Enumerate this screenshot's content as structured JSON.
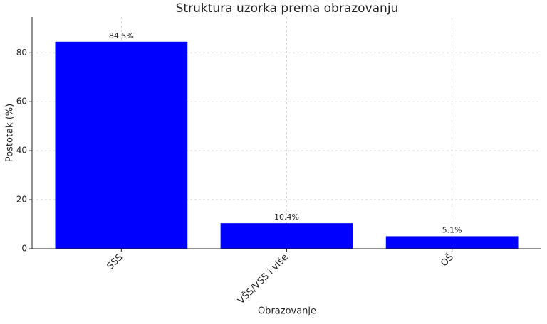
{
  "chart_data": {
    "type": "bar",
    "title": "Struktura uzorka prema obrazovanju",
    "x_label": "Obrazovanje",
    "y_label": "Postotak (%)",
    "categories": [
      "SSS",
      "VŠS/VSS i više",
      "OŠ"
    ],
    "values": [
      84.5,
      10.4,
      5.1
    ],
    "value_labels": [
      "84.5%",
      "10.4%",
      "5.1%"
    ],
    "color": "#0000ff",
    "ylim": [
      0,
      94.6
    ],
    "yticks": [
      0,
      20,
      40,
      60,
      80
    ],
    "grid": true
  }
}
